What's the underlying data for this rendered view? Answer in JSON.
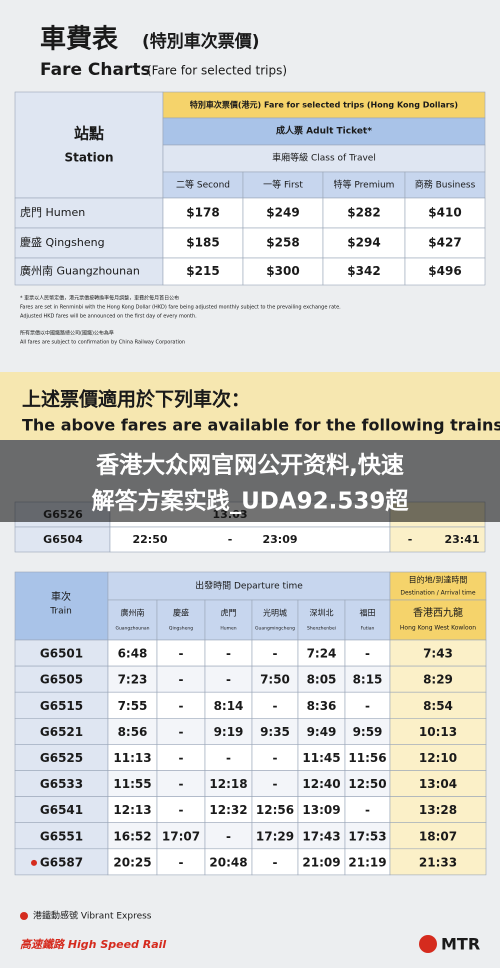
{
  "header": {
    "title_zh": "車費表",
    "title_zh_sub": "(特別車次票價)",
    "title_en": "Fare Charts",
    "title_en_sub": "(Fare for selected trips)"
  },
  "fare_table": {
    "caption": "特別車次票價(港元) Fare for selected trips (Hong Kong Dollars)",
    "ticket": "成人票 Adult Ticket*",
    "class_label": "車廂等級 Class of Travel",
    "station_header_zh": "站點",
    "station_header_en": "Station",
    "classes": [
      "二等 Second",
      "一等 First",
      "特等 Premium",
      "商務 Business"
    ],
    "rows": [
      {
        "station": "虎門 Humen",
        "fares": [
          "$178",
          "$249",
          "$282",
          "$410"
        ]
      },
      {
        "station": "慶盛 Qingsheng",
        "fares": [
          "$185",
          "$258",
          "$294",
          "$427"
        ]
      },
      {
        "station": "廣州南 Guangzhounan",
        "fares": [
          "$215",
          "$300",
          "$342",
          "$496"
        ]
      }
    ]
  },
  "notes": [
    "* 車票以人民幣定價，港元票價按轉換率每月調整，車費於每月首日公布",
    "Fares are set in Renminbi with the Hong Kong Dollar (HKD) fare being adjusted monthly subject to the prevailing exchange rate.",
    "Adjusted HKD fares will be announced on the first day of every month.",
    "所有票價以中國鐵路總公司(國鐵)公布為準",
    "All fares are subject to confirmation by China Railway Corporation"
  ],
  "trains_heading": {
    "zh": "上述票價適用於下列車次：",
    "en": "The above fares are available for the following trains:"
  },
  "banner": [
    "香港大众网官网公开资料,快速",
    "解答方案实践_UDA92.539超"
  ],
  "partial_rows": [
    [
      "G6526",
      "13:03"
    ],
    [
      "G6504",
      "22:50",
      "-",
      "23:09",
      "-",
      "23:41"
    ]
  ],
  "timetable": {
    "train_header_zh": "車次",
    "train_header_en": "Train",
    "departure_header": "出發時間 Departure time",
    "destination_header_zh": "目的地/到達時間",
    "destination_header_en": "Destination / Arrival time",
    "stations": [
      {
        "zh": "廣州南",
        "en": "Guangzhounan"
      },
      {
        "zh": "慶盛",
        "en": "Qingsheng"
      },
      {
        "zh": "虎門",
        "en": "Humen"
      },
      {
        "zh": "光明城",
        "en": "Guangmingcheng"
      },
      {
        "zh": "深圳北",
        "en": "Shenzhenbei"
      },
      {
        "zh": "福田",
        "en": "Futian"
      },
      {
        "zh": "香港西九龍",
        "en": "Hong Kong West Kowloon"
      }
    ],
    "rows": [
      [
        "G6501",
        "6:48",
        "-",
        "-",
        "-",
        "7:24",
        "-",
        "7:43"
      ],
      [
        "G6505",
        "7:23",
        "-",
        "-",
        "7:50",
        "8:05",
        "8:15",
        "8:29"
      ],
      [
        "G6515",
        "7:55",
        "-",
        "8:14",
        "-",
        "8:36",
        "-",
        "8:54"
      ],
      [
        "G6521",
        "8:56",
        "-",
        "9:19",
        "9:35",
        "9:49",
        "9:59",
        "10:13"
      ],
      [
        "G6525",
        "11:13",
        "-",
        "-",
        "-",
        "11:45",
        "11:56",
        "12:10"
      ],
      [
        "G6533",
        "11:55",
        "-",
        "12:18",
        "-",
        "12:40",
        "12:50",
        "13:04"
      ],
      [
        "G6541",
        "12:13",
        "-",
        "12:32",
        "12:56",
        "13:09",
        "-",
        "13:28"
      ],
      [
        "G6551",
        "16:52",
        "17:07",
        "-",
        "17:29",
        "17:43",
        "17:53",
        "18:07"
      ],
      [
        "G6587",
        "20:25",
        "-",
        "20:48",
        "-",
        "21:09",
        "21:19",
        "21:33"
      ]
    ]
  },
  "footer": {
    "legend": "港鐵動感號 Vibrant Express",
    "brand": "高速鐵路 High Speed Rail",
    "mtr": "MTR"
  }
}
